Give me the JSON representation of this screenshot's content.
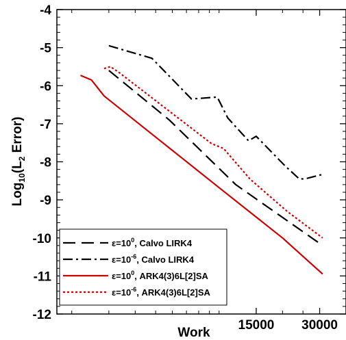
{
  "chart_data": {
    "type": "line",
    "title": "",
    "xlabel": "Work",
    "ylabel_prefix": "Log",
    "ylabel_sub10": "10",
    "ylabel_open": "(L",
    "ylabel_sub2": "2",
    "ylabel_rest": " Error)",
    "xscale": "log",
    "xlim": [
      1700,
      40000
    ],
    "ylim": [
      -12,
      -4
    ],
    "xticks": [
      15000,
      30000
    ],
    "xtick_labels": [
      "15000",
      "30000"
    ],
    "yticks": [
      -12,
      -11,
      -10,
      -9,
      -8,
      -7,
      -6,
      -5,
      -4
    ],
    "ytick_labels": [
      "-12",
      "-11",
      "-10",
      "-9",
      "-8",
      "-7",
      "-6",
      "-5",
      "-4"
    ],
    "grid": false,
    "legend_position": "bottom-left",
    "series": [
      {
        "legend_parts": [
          "ε=10",
          "0",
          ", Calvo LIRK4"
        ],
        "color": "#000000",
        "dash": "18,9",
        "x": [
          3000,
          5800,
          12000,
          31000
        ],
        "y": [
          -5.6,
          -6.9,
          -8.6,
          -10.2
        ]
      },
      {
        "legend_parts": [
          "ε=10",
          "-6",
          ", Calvo LIRK4"
        ],
        "color": "#000000",
        "dash": "14,5,3,5",
        "x": [
          3000,
          4800,
          7400,
          9800,
          11000,
          13800,
          15000,
          20500,
          24000,
          25500,
          31000
        ],
        "y": [
          -4.95,
          -5.28,
          -6.35,
          -6.3,
          -6.85,
          -7.45,
          -7.33,
          -8.1,
          -8.45,
          -8.45,
          -8.33
        ]
      },
      {
        "legend_parts": [
          "ε=10",
          "0",
          ", ARK4(3)6L[2]SA"
        ],
        "color": "#cc0000",
        "dash": "",
        "x": [
          2200,
          2480,
          2850,
          5000,
          10000,
          20000,
          31000
        ],
        "y": [
          -5.73,
          -5.85,
          -6.27,
          -7.35,
          -8.68,
          -10.0,
          -10.95
        ]
      },
      {
        "legend_parts": [
          "ε=10",
          "-6",
          ", ARK4(3)6L[2]SA"
        ],
        "color": "#cc0000",
        "dash": "3,3",
        "x": [
          2850,
          3050,
          3350,
          6000,
          9200,
          10500,
          14000,
          21000,
          31000
        ],
        "y": [
          -5.55,
          -5.5,
          -5.65,
          -6.73,
          -7.52,
          -7.65,
          -8.45,
          -9.3,
          -10.0
        ]
      }
    ]
  }
}
